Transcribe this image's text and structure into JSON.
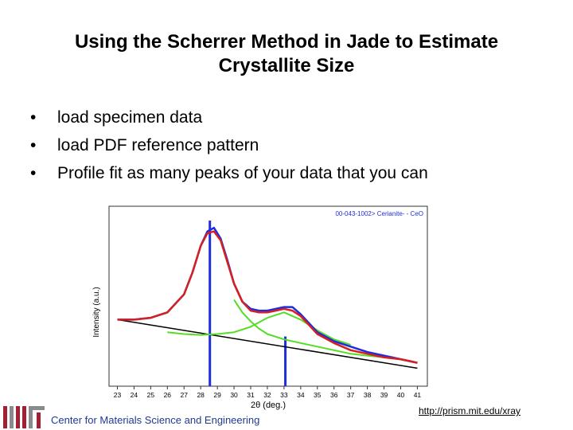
{
  "slide": {
    "title_line1": "Using the Scherrer Method in Jade to Estimate",
    "title_line2": "Crystallite Size",
    "bullets": [
      "load specimen data",
      "load PDF reference pattern",
      "Profile fit as many peaks of your data that you can"
    ],
    "footer_text": "Center for Materials Science and Engineering",
    "footer_link": "http://prism.mit.edu/xray"
  },
  "colors": {
    "data": "#1f2ce0",
    "fit": "#d42020",
    "components": "#55dd22",
    "background_line": "#000000",
    "reference": "#1f2ce0"
  },
  "chart_data": {
    "type": "line",
    "xlabel": "2θ (deg.)",
    "ylabel": "Intensity (a.u.)",
    "annotation": "00-043-1002> Cerianite- - CeO",
    "xlim": [
      22.5,
      41.6
    ],
    "ylim": [
      0,
      100
    ],
    "x_ticks": [
      23,
      24,
      25,
      26,
      27,
      28,
      29,
      30,
      31,
      32,
      33,
      34,
      35,
      36,
      37,
      38,
      39,
      40,
      41
    ],
    "grid": false,
    "reference_lines": [
      {
        "x": 28.55,
        "intensity": 100
      },
      {
        "x": 33.08,
        "intensity": 30
      }
    ],
    "series": [
      {
        "kind": "data",
        "x": [
          23,
          24,
          25,
          26,
          27,
          27.5,
          28,
          28.4,
          28.8,
          29.2,
          29.6,
          30,
          30.5,
          31,
          31.5,
          32,
          32.5,
          33,
          33.5,
          34,
          34.5,
          35,
          36,
          37,
          38,
          39,
          40,
          41
        ],
        "y": [
          37,
          37,
          38,
          41,
          51,
          63,
          78,
          86,
          88,
          82,
          70,
          57,
          47,
          43,
          42,
          42,
          43,
          44,
          44,
          40,
          35,
          30,
          25,
          22,
          19,
          17,
          15,
          13
        ]
      },
      {
        "kind": "fit",
        "x": [
          23,
          24,
          25,
          26,
          27,
          27.5,
          28,
          28.4,
          28.8,
          29.2,
          29.6,
          30,
          30.5,
          31,
          31.5,
          32,
          32.5,
          33,
          33.5,
          34,
          34.5,
          35,
          36,
          37,
          38,
          39,
          40,
          41
        ],
        "y": [
          37,
          37,
          38,
          41,
          51,
          63,
          78,
          85,
          86,
          81,
          69,
          57,
          47,
          42,
          41,
          41,
          42,
          43,
          42,
          39,
          34,
          29,
          24,
          20,
          18,
          16,
          15,
          13
        ]
      },
      {
        "kind": "component",
        "x": [
          26,
          27,
          28,
          29,
          30,
          31,
          32,
          33,
          34,
          35,
          36,
          37
        ],
        "y": [
          30,
          29,
          28.5,
          29,
          30,
          33,
          38,
          41,
          37,
          31,
          26,
          23
        ]
      },
      {
        "kind": "component",
        "x": [
          30,
          30.5,
          31,
          31.5,
          32,
          33,
          34,
          35,
          36,
          37,
          38,
          39,
          40,
          41
        ],
        "y": [
          48,
          41,
          36,
          32,
          29,
          26,
          24,
          22,
          20,
          18,
          17,
          16,
          15,
          13
        ]
      },
      {
        "kind": "background",
        "x": [
          23,
          41
        ],
        "y": [
          37,
          10
        ]
      }
    ]
  }
}
